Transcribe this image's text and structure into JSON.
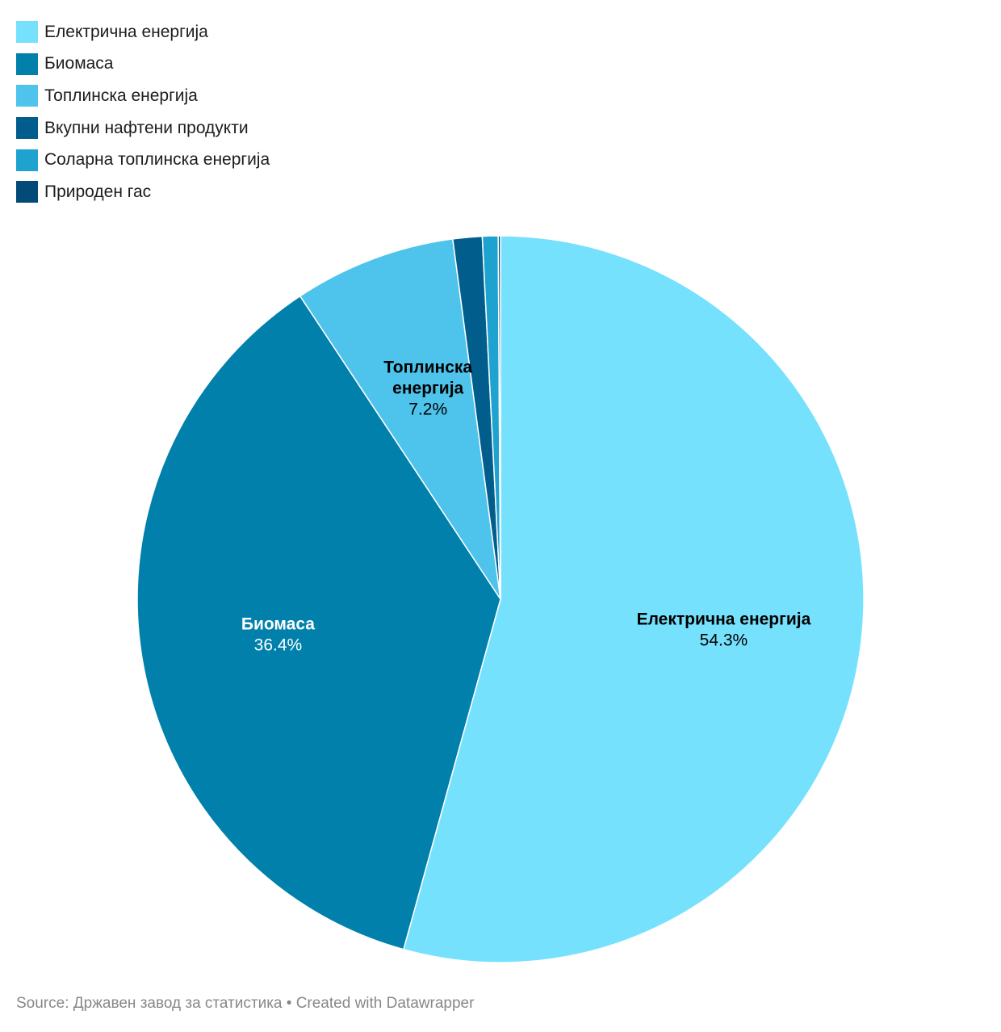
{
  "chart_data": {
    "type": "pie",
    "categories": [
      "Електрична енергија",
      "Биомаса",
      "Топлинска енергија",
      "Вкупни нафтени продукти",
      "Соларна топлинска енергија",
      "Природен гас"
    ],
    "values": [
      54.3,
      36.4,
      7.2,
      1.3,
      0.7,
      0.1
    ],
    "colors": [
      "#76e1fd",
      "#0080ab",
      "#4ec3eb",
      "#015e8c",
      "#1ea3d0",
      "#024b79"
    ],
    "slice_labels": [
      {
        "name": "Електрична енергија",
        "value": "54.3%",
        "text_color": "#000000"
      },
      {
        "name": "Биомаса",
        "value": "36.4%",
        "text_color": "#ffffff"
      },
      {
        "name_lines": [
          "Топлинска",
          "енергија"
        ],
        "value": "7.2%",
        "text_color": "#000000"
      }
    ],
    "legend": "top-left"
  },
  "legend": {
    "items": [
      {
        "label": "Електрична енергија",
        "color": "#76e1fd"
      },
      {
        "label": "Биомаса",
        "color": "#0080ab"
      },
      {
        "label": "Топлинска енергија",
        "color": "#4ec3eb"
      },
      {
        "label": "Вкупни нафтени продукти",
        "color": "#015e8c"
      },
      {
        "label": "Соларна топлинска енергија",
        "color": "#1ea3d0"
      },
      {
        "label": "Природен гас",
        "color": "#024b79"
      }
    ]
  },
  "footer": {
    "text": "Source: Државен завод за статистика • Created with Datawrapper"
  }
}
